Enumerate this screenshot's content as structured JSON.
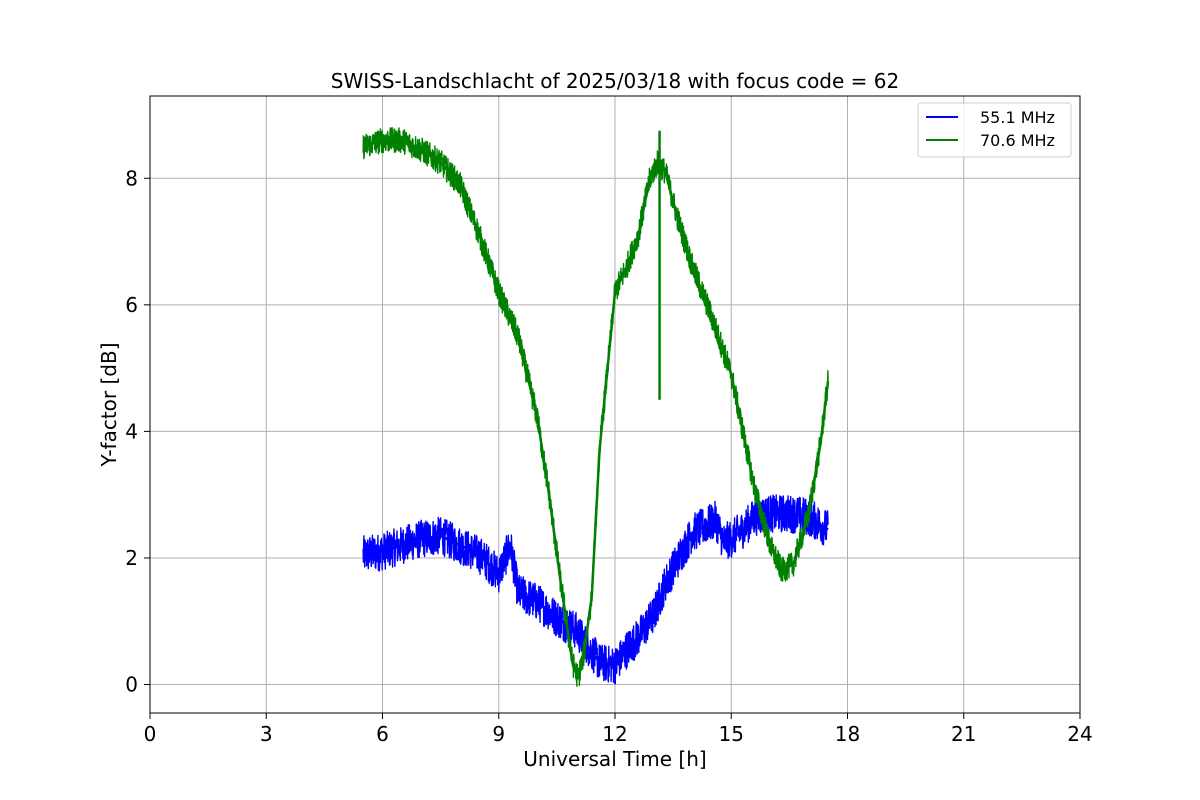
{
  "chart_data": {
    "type": "line",
    "title": "SWISS-Landschlacht of 2025/03/18 with focus code = 62",
    "xlabel": "Universal Time [h]",
    "ylabel": "Y-factor [dB]",
    "xlim": [
      0,
      24
    ],
    "ylim": [
      -0.45,
      9.3
    ],
    "xticks": [
      0,
      3,
      6,
      9,
      12,
      15,
      18,
      21,
      24
    ],
    "yticks": [
      0,
      2,
      4,
      6,
      8
    ],
    "grid": true,
    "legend_position": "top-right",
    "series": [
      {
        "name": "55.1 MHz",
        "color": "#0000ff",
        "x": [
          5.5,
          6.0,
          6.5,
          7.0,
          7.5,
          8.0,
          8.5,
          9.0,
          9.3,
          9.5,
          10.0,
          10.5,
          11.0,
          11.3,
          11.6,
          12.0,
          12.3,
          12.6,
          13.0,
          13.3,
          13.6,
          14.0,
          14.3,
          14.6,
          14.8,
          15.0,
          15.3,
          15.6,
          16.0,
          16.5,
          17.0,
          17.5
        ],
        "y": [
          2.05,
          2.1,
          2.2,
          2.3,
          2.35,
          2.2,
          2.05,
          1.75,
          2.2,
          1.45,
          1.3,
          1.05,
          0.85,
          0.6,
          0.35,
          0.3,
          0.55,
          0.75,
          1.1,
          1.6,
          1.95,
          2.4,
          2.5,
          2.6,
          2.25,
          2.3,
          2.45,
          2.65,
          2.7,
          2.7,
          2.65,
          2.45
        ]
      },
      {
        "name": "70.6 MHz",
        "color": "#008000",
        "x": [
          5.5,
          6.0,
          6.5,
          7.0,
          7.5,
          8.0,
          8.5,
          9.0,
          9.5,
          10.0,
          10.3,
          10.6,
          10.9,
          11.05,
          11.2,
          11.4,
          11.6,
          12.0,
          12.3,
          12.6,
          12.9,
          13.1,
          13.3,
          13.6,
          14.0,
          14.5,
          15.0,
          15.3,
          15.6,
          16.0,
          16.3,
          16.6,
          17.0,
          17.3,
          17.5
        ],
        "y": [
          8.5,
          8.6,
          8.6,
          8.45,
          8.25,
          7.9,
          7.1,
          6.2,
          5.5,
          4.2,
          3.0,
          1.6,
          0.35,
          0.1,
          0.5,
          1.4,
          3.7,
          6.2,
          6.6,
          7.1,
          8.0,
          8.25,
          8.1,
          7.4,
          6.6,
          5.8,
          4.9,
          4.0,
          3.1,
          2.2,
          1.8,
          1.9,
          2.7,
          3.8,
          4.8
        ]
      }
    ],
    "annotations": [
      {
        "series": "70.6 MHz",
        "kind": "spike",
        "x": 13.15,
        "y_from": 4.5,
        "y_to": 8.75
      }
    ]
  }
}
